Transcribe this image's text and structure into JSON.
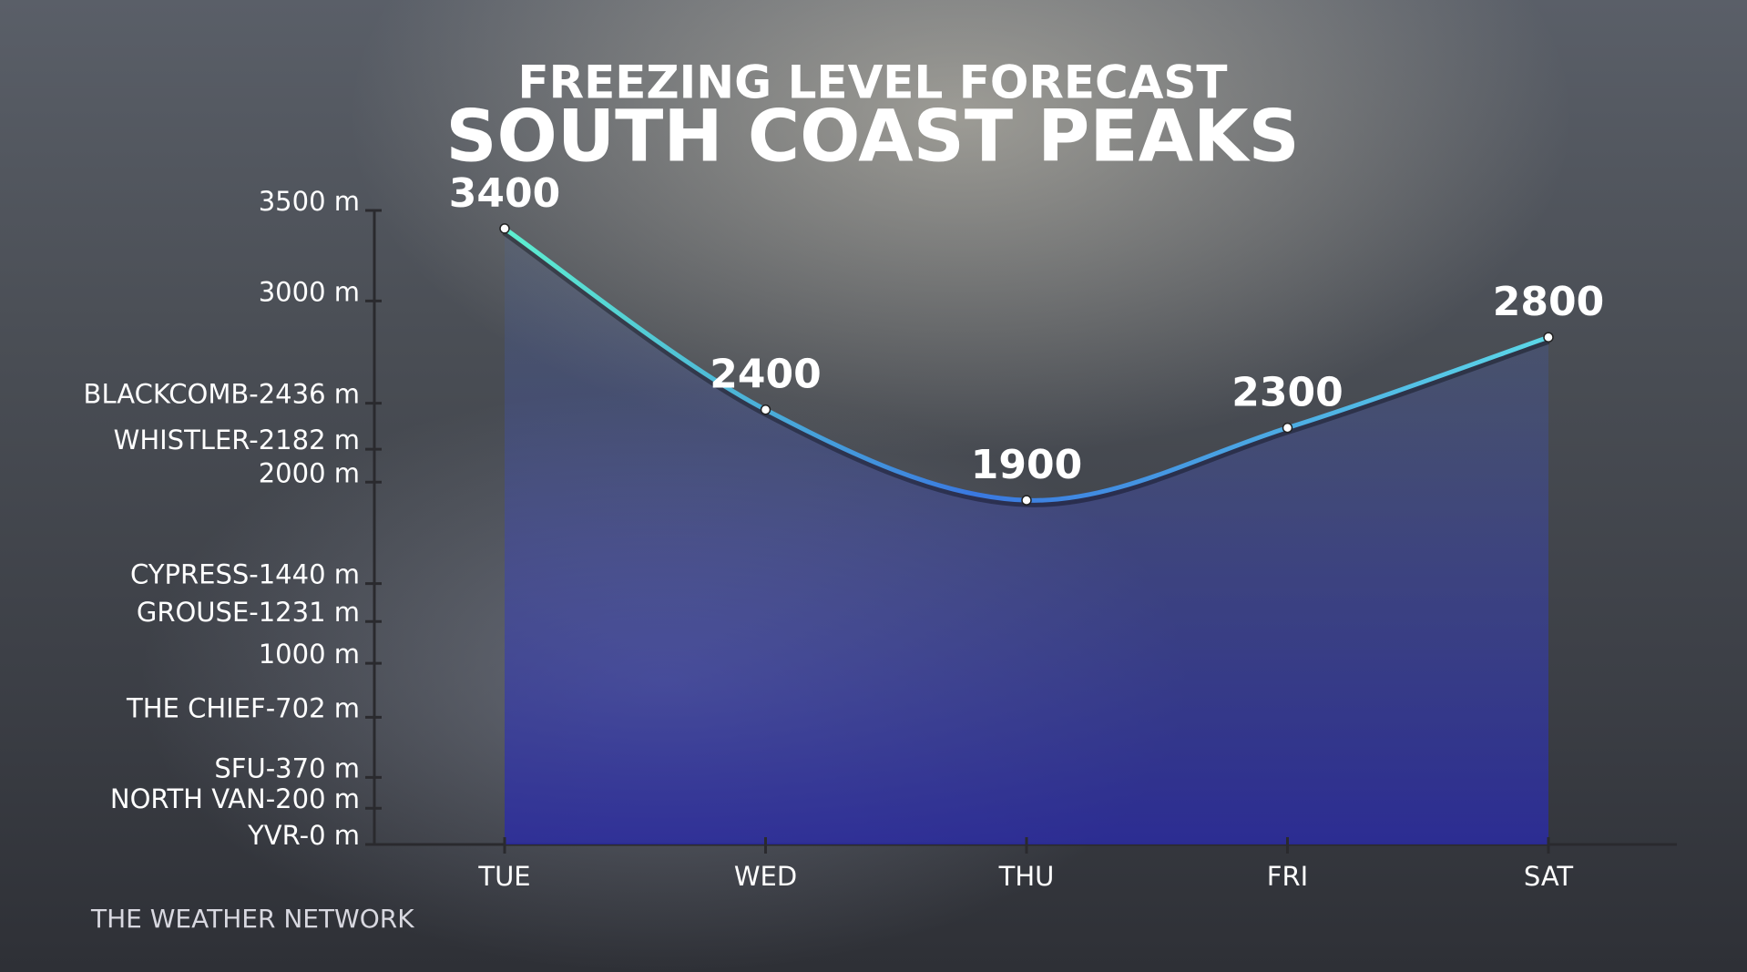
{
  "chart_data": {
    "type": "area",
    "title": "FREEZING LEVEL FORECAST",
    "subtitle": "SOUTH COAST PEAKS",
    "source": "THE WEATHER NETWORK",
    "categories": [
      "TUE",
      "WED",
      "THU",
      "FRI",
      "SAT"
    ],
    "values": [
      3400,
      2400,
      1900,
      2300,
      2800
    ],
    "color": "#3d8be0",
    "ylim": [
      0,
      3500
    ],
    "yticks": [
      {
        "value": 0,
        "label": "YVR-0 m"
      },
      {
        "value": 200,
        "label": "NORTH VAN-200 m"
      },
      {
        "value": 370,
        "label": "SFU-370 m"
      },
      {
        "value": 702,
        "label": "THE CHIEF-702 m"
      },
      {
        "value": 1000,
        "label": "1000 m"
      },
      {
        "value": 1231,
        "label": "GROUSE-1231 m"
      },
      {
        "value": 1440,
        "label": "CYPRESS-1440 m"
      },
      {
        "value": 2000,
        "label": "2000 m"
      },
      {
        "value": 2182,
        "label": "WHISTLER-2182 m"
      },
      {
        "value": 2436,
        "label": "BLACKCOMB-2436 m"
      },
      {
        "value": 3000,
        "label": "3000 m"
      },
      {
        "value": 3500,
        "label": "3500 m"
      }
    ]
  }
}
